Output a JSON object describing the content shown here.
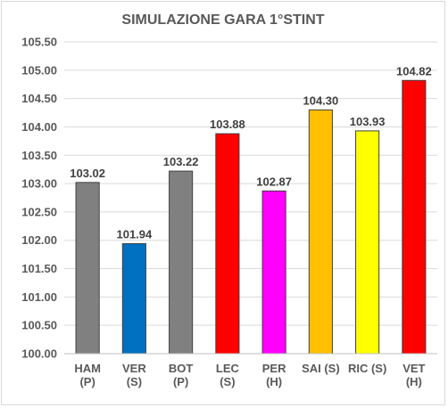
{
  "chart_data": {
    "type": "bar",
    "title": "SIMULAZIONE GARA 1°STINT",
    "categories": [
      [
        "HAM",
        "(P)"
      ],
      [
        "VER",
        "(S)"
      ],
      [
        "BOT",
        "(P)"
      ],
      [
        "LEC",
        "(S)"
      ],
      [
        "PER",
        "(H)"
      ],
      [
        "SAI (S)",
        ""
      ],
      [
        "RIC (S)",
        ""
      ],
      [
        "VET",
        "(H)"
      ]
    ],
    "values": [
      103.02,
      101.94,
      103.22,
      103.88,
      102.87,
      104.3,
      103.93,
      104.82
    ],
    "value_labels": [
      "103.02",
      "101.94",
      "103.22",
      "103.88",
      "102.87",
      "104.30",
      "103.93",
      "104.82"
    ],
    "colors": [
      "#808080",
      "#0070c0",
      "#808080",
      "#ff0000",
      "#ff00ff",
      "#ffc000",
      "#ffff00",
      "#ff0000"
    ],
    "ylim": [
      100.0,
      105.5
    ],
    "yticks": [
      "100.00",
      "100.50",
      "101.00",
      "101.50",
      "102.00",
      "102.50",
      "103.00",
      "103.50",
      "104.00",
      "104.50",
      "105.00",
      "105.50"
    ],
    "grid": true,
    "legend": "none",
    "xlabel": "",
    "ylabel": ""
  }
}
